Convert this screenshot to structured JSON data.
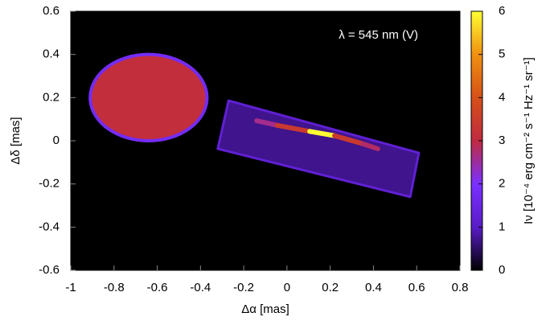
{
  "chart_data": {
    "type": "heatmap",
    "xlabel": "Δα [mas]",
    "ylabel": "Δδ [mas]",
    "annotation": "λ = 545 nm (V)",
    "colorbar_label": "Iν [10⁻⁴ erg cm⁻² s⁻¹ Hz⁻¹ sr⁻¹]",
    "xlim": [
      -1,
      0.8
    ],
    "xticks": [
      -1,
      -0.8,
      -0.6,
      -0.4,
      -0.2,
      0,
      0.2,
      0.4,
      0.6,
      0.8
    ],
    "ylim": [
      -0.6,
      0.6
    ],
    "yticks": [
      -0.6,
      -0.4,
      -0.2,
      0,
      0.2,
      0.4,
      0.6
    ],
    "clim": [
      0,
      6
    ],
    "cticks": [
      0,
      1,
      2,
      3,
      4,
      5,
      6
    ],
    "colormap": [
      "#000000",
      "#5a1cc8",
      "#7a30ff",
      "#c02a40",
      "#d65018",
      "#f09010",
      "#ffff33"
    ],
    "features": [
      {
        "shape": "ellipse",
        "center": [
          -0.64,
          0.2
        ],
        "radii": [
          0.27,
          0.2
        ],
        "value": 3.1,
        "edge_value": 1.8
      },
      {
        "shape": "polygon",
        "x": [
          -0.27,
          0.61,
          0.57,
          -0.32
        ],
        "y": [
          0.186,
          -0.056,
          -0.26,
          -0.037
        ],
        "value": 0.7,
        "edge_value": 1.2
      },
      {
        "shape": "line",
        "x": [
          -0.14,
          0.05,
          0.16,
          0.28,
          0.42
        ],
        "y": [
          0.093,
          0.05,
          0.037,
          0.01,
          -0.037
        ],
        "values": [
          2.6,
          3.4,
          6,
          3.4,
          2.8
        ]
      }
    ]
  }
}
